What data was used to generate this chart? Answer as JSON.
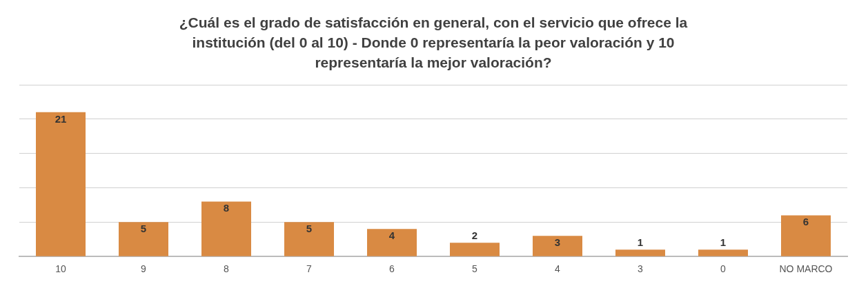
{
  "chart_data": {
    "type": "bar",
    "title": "¿Cuál es el grado de satisfacción en general, con el servicio que ofrece la institución (del 0 al 10) - Donde 0 representaría la peor valoración y 10 representaría la mejor valoración?",
    "categories": [
      "10",
      "9",
      "8",
      "7",
      "6",
      "5",
      "4",
      "3",
      "0",
      "NO MARCO"
    ],
    "values": [
      21,
      5,
      8,
      5,
      4,
      2,
      3,
      1,
      1,
      6
    ],
    "color": "#d98a43",
    "ylim": [
      0,
      25
    ],
    "yticks": [
      {
        "value": 0,
        "label": null
      },
      {
        "value": 5,
        "label": null
      },
      {
        "value": 10,
        "label": null
      },
      {
        "value": 15,
        "label": null
      },
      {
        "value": 20,
        "label": null
      },
      {
        "value": 25,
        "label": null
      }
    ],
    "grid": "y",
    "tick_labels": "x",
    "data_labels": true
  }
}
